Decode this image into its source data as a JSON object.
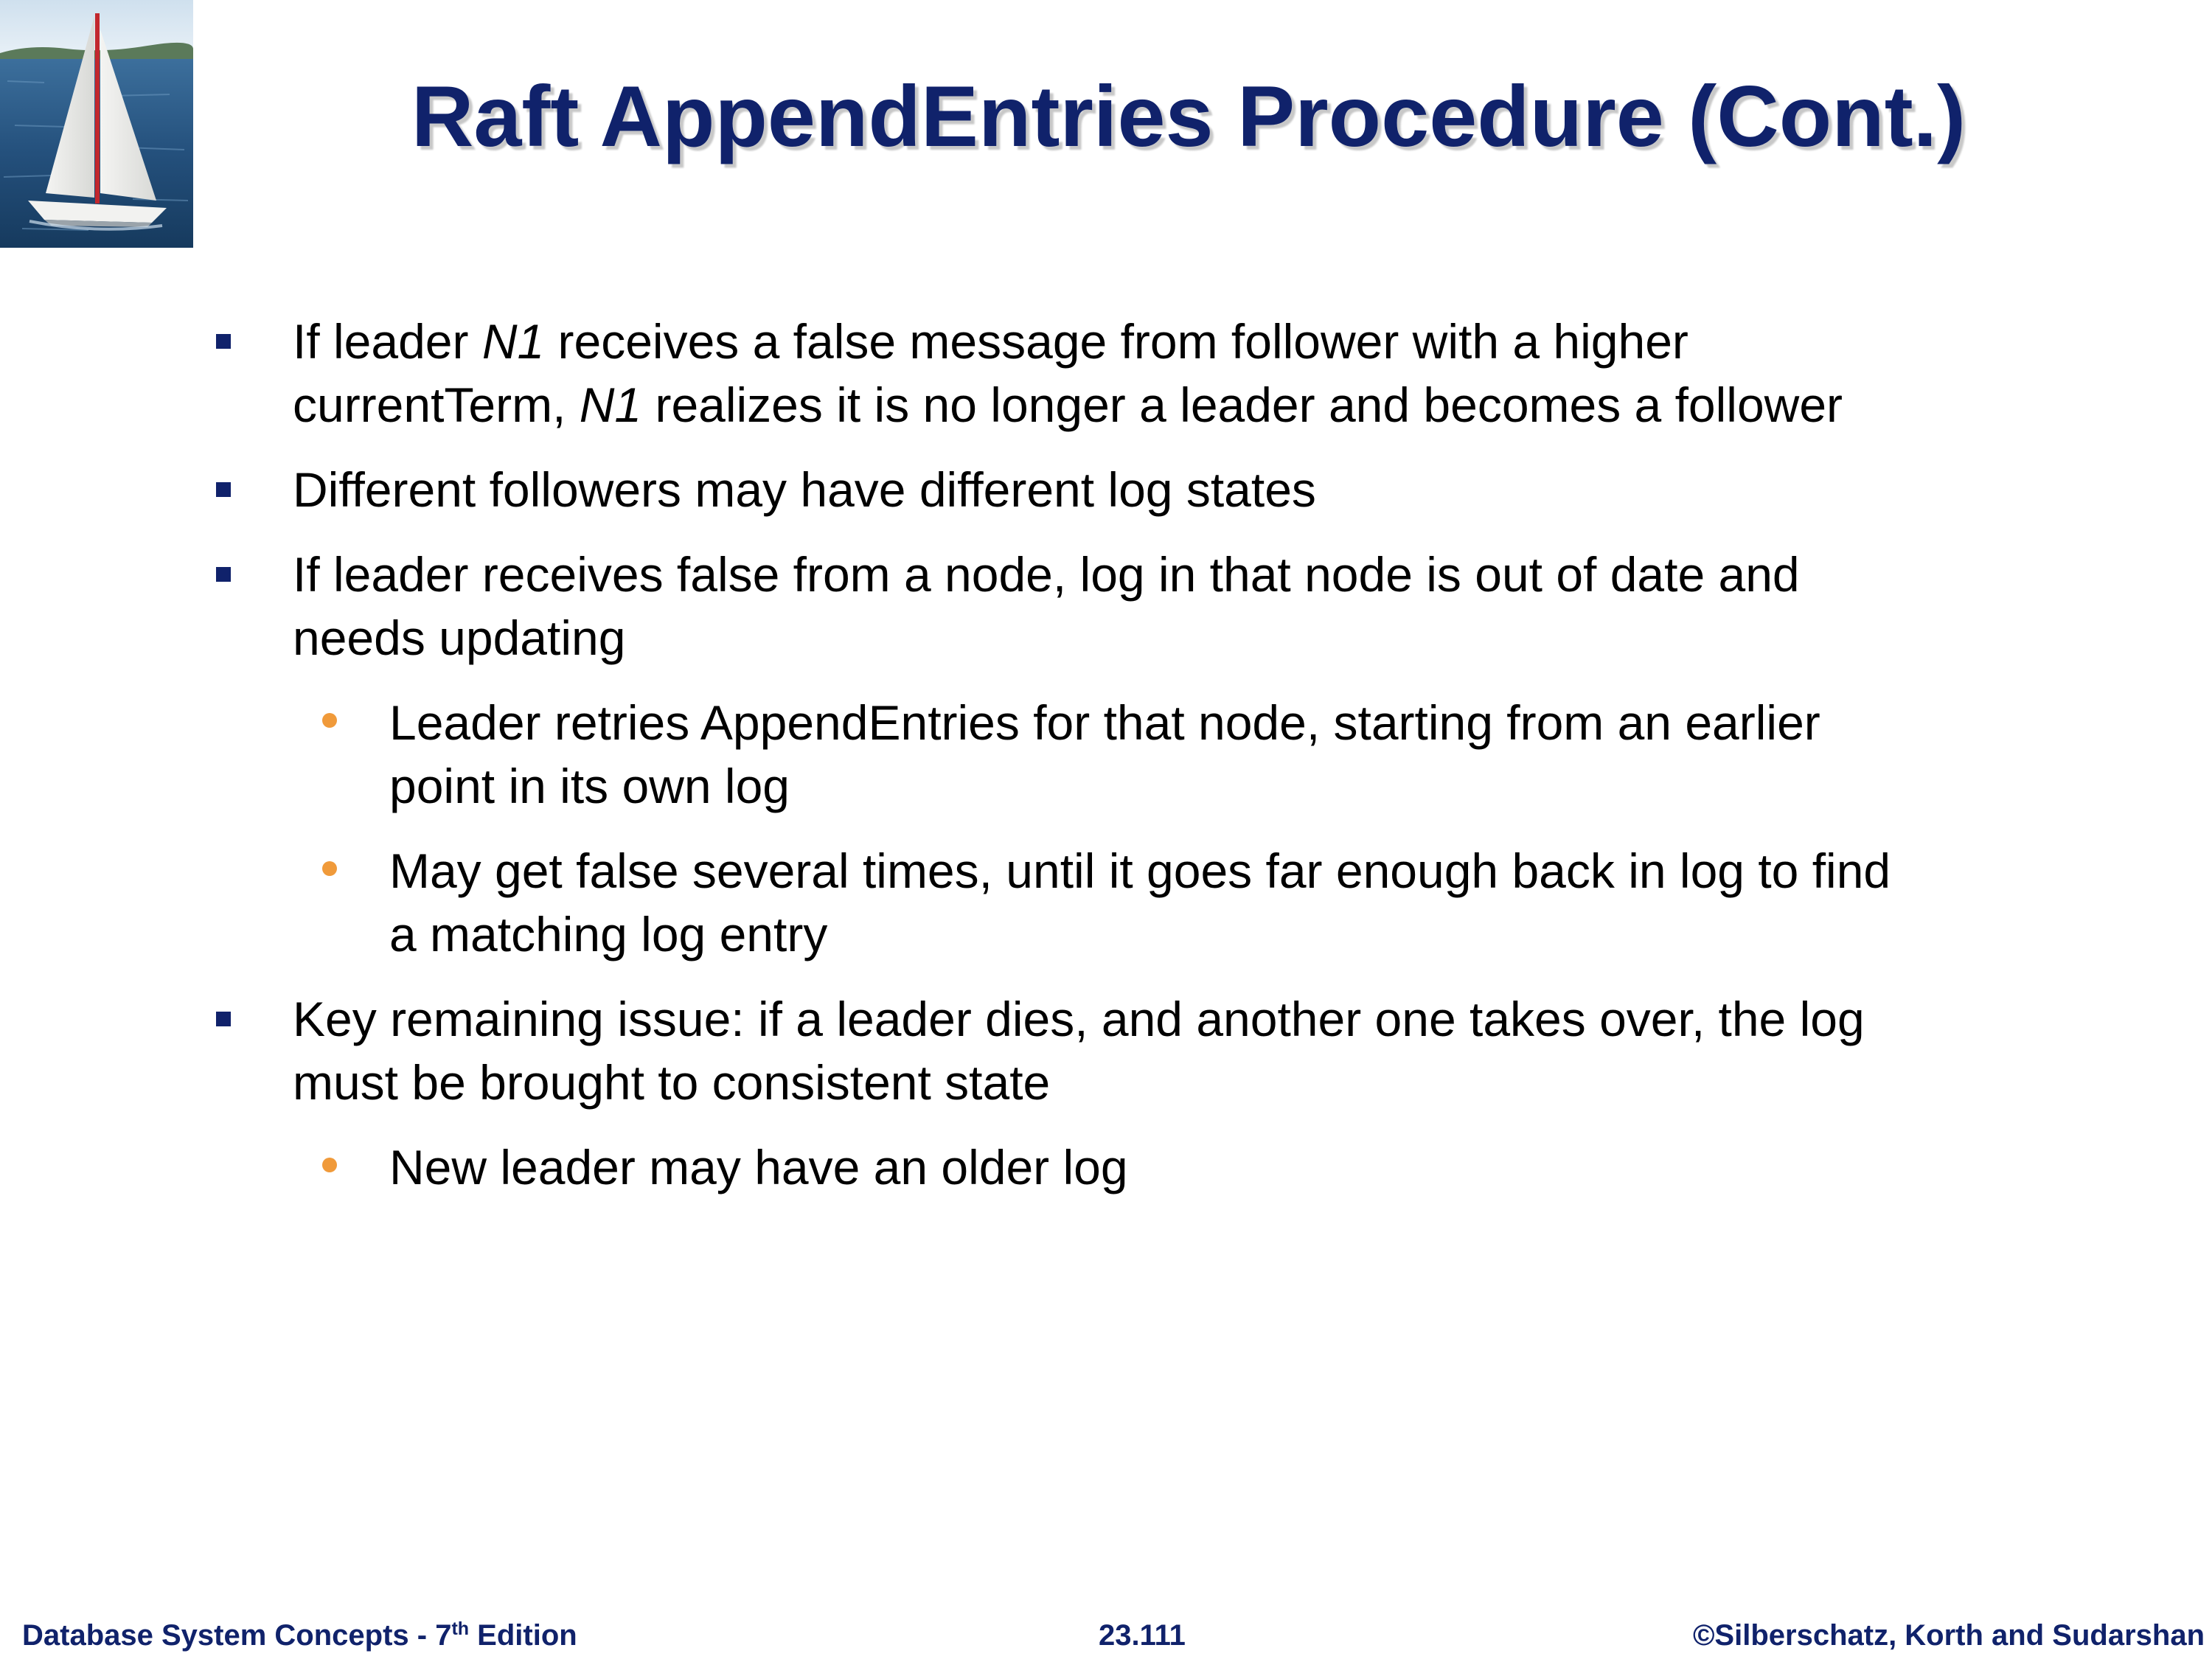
{
  "slide": {
    "title": "Raft AppendEntries Procedure (Cont.)"
  },
  "bullets": [
    {
      "level": 1,
      "lines": [
        [
          {
            "text": "If leader ",
            "italic": false
          },
          {
            "text": "N1",
            "italic": true
          },
          {
            "text": " receives a false message from follower with a higher",
            "italic": false
          }
        ],
        [
          {
            "text": "currentTerm, ",
            "italic": false
          },
          {
            "text": "N1",
            "italic": true
          },
          {
            "text": " realizes it is no longer a leader and becomes a follower",
            "italic": false
          }
        ]
      ]
    },
    {
      "level": 1,
      "lines": [
        [
          {
            "text": "Different followers may have different log states",
            "italic": false
          }
        ]
      ]
    },
    {
      "level": 1,
      "lines": [
        [
          {
            "text": "If leader receives false from a node, log in that node is out of date and",
            "italic": false
          }
        ],
        [
          {
            "text": "needs updating",
            "italic": false
          }
        ]
      ]
    },
    {
      "level": 2,
      "lines": [
        [
          {
            "text": "Leader retries AppendEntries for that node, starting from an earlier",
            "italic": false
          }
        ],
        [
          {
            "text": "point in its own log",
            "italic": false
          }
        ]
      ]
    },
    {
      "level": 2,
      "lines": [
        [
          {
            "text": "May get false several times, until it goes far enough back in log to find",
            "italic": false
          }
        ],
        [
          {
            "text": "a matching log entry",
            "italic": false
          }
        ]
      ]
    },
    {
      "level": 1,
      "lines": [
        [
          {
            "text": "Key remaining issue: if a leader dies, and another one takes over, the log",
            "italic": false
          }
        ],
        [
          {
            "text": "must be brought to consistent state",
            "italic": false
          }
        ]
      ]
    },
    {
      "level": 2,
      "lines": [
        [
          {
            "text": "New leader may have an older log",
            "italic": false
          }
        ]
      ]
    }
  ],
  "footer": {
    "left_prefix": "Database System Concepts - 7",
    "left_sup": "th",
    "left_suffix": " Edition",
    "center": "23.111",
    "right": "©Silberschatz, Korth and Sudarshan"
  },
  "colors": {
    "title": "#10226b",
    "level1_marker": "#10226b",
    "level2_marker": "#f09a3a",
    "footer": "#10226b"
  },
  "icons": {
    "logo": "sailboat-image-icon"
  }
}
